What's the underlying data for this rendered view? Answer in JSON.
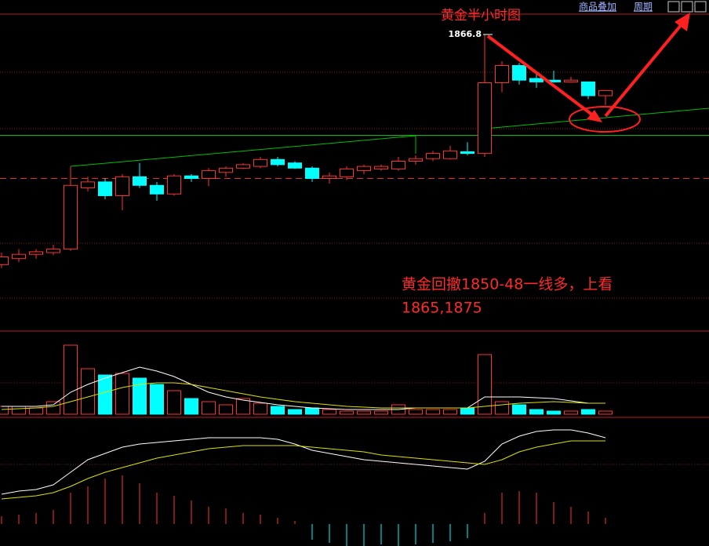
{
  "chart_data": {
    "type": "candlestick",
    "title": "黄金半小时图",
    "annotation": [
      "黄金回撤1850-48一线多，上看",
      "1865,1875"
    ],
    "toolbar": [
      "商品叠加",
      "周期"
    ],
    "open": [
      1840.1,
      1840.8,
      1841.3,
      1841.5,
      1841.9,
      1849.0,
      1849.7,
      1848.1,
      1850.3,
      1849.3,
      1848.3,
      1850.4,
      1850.1,
      1850.8,
      1851.3,
      1851.5,
      1852.3,
      1851.9,
      1851.3,
      1850.1,
      1850.3,
      1851.0,
      1851.2,
      1851.2,
      1852.1,
      1852.4,
      1852.4,
      1853.2,
      1853.0,
      1861.2,
      1863.2,
      1861.7,
      1861.5,
      1861.3,
      1861.3,
      1859.7
    ],
    "high": [
      1841.5,
      1841.9,
      1841.9,
      1842.4,
      1851.5,
      1850.3,
      1850.1,
      1850.6,
      1851.9,
      1849.7,
      1850.6,
      1850.6,
      1851.3,
      1851.5,
      1851.9,
      1852.6,
      1852.6,
      1852.1,
      1851.5,
      1850.8,
      1851.5,
      1851.7,
      1851.7,
      1852.6,
      1852.8,
      1853.3,
      1853.9,
      1854.3,
      1866.8,
      1863.7,
      1863.5,
      1862.3,
      1862.6,
      1861.9,
      1861.3,
      1860.3
    ],
    "low": [
      1839.7,
      1840.4,
      1840.8,
      1841.2,
      1841.7,
      1848.6,
      1847.7,
      1846.4,
      1849.0,
      1847.5,
      1848.1,
      1849.7,
      1849.2,
      1850.3,
      1851.2,
      1851.3,
      1851.5,
      1851.2,
      1849.7,
      1849.5,
      1849.9,
      1850.6,
      1851.0,
      1851.0,
      1851.7,
      1852.1,
      1852.3,
      1852.8,
      1852.6,
      1860.1,
      1861.0,
      1860.6,
      1861.2,
      1861.2,
      1859.3,
      1858.6
    ],
    "close": [
      1841.0,
      1841.3,
      1841.6,
      1841.9,
      1849.3,
      1849.7,
      1848.1,
      1850.3,
      1849.3,
      1848.3,
      1850.4,
      1850.1,
      1851.0,
      1851.3,
      1851.7,
      1852.3,
      1851.7,
      1851.3,
      1850.1,
      1850.4,
      1851.2,
      1851.5,
      1851.5,
      1852.1,
      1852.4,
      1853.0,
      1853.3,
      1853.0,
      1861.2,
      1863.2,
      1861.5,
      1861.3,
      1861.3,
      1861.5,
      1859.7,
      1860.3
    ],
    "up_color": "#ff3232",
    "down_color": "#00ffff",
    "ylim": [
      1832.4,
      1870.8
    ],
    "grid": true,
    "levels": [
      {
        "value": 1855.1,
        "color": "#00c000",
        "dash": false
      },
      {
        "value": 1850.1,
        "color": "#e03030",
        "dash": true
      }
    ],
    "volume": {
      "ylim": [
        0,
        91
      ],
      "values": [
        10,
        10,
        8,
        16,
        88,
        58,
        50,
        52,
        46,
        38,
        30,
        20,
        16,
        12,
        20,
        14,
        10,
        6,
        8,
        6,
        4,
        4,
        4,
        12,
        6,
        6,
        6,
        8,
        76,
        16,
        12,
        6,
        4,
        4,
        6,
        4
      ],
      "lines": [
        {
          "color": "#ffffff",
          "values": [
            10,
            10,
            10,
            12,
            28,
            38,
            46,
            53,
            60,
            55,
            48,
            38,
            28,
            22,
            18,
            15,
            12,
            10,
            8,
            7,
            6,
            6,
            6,
            6,
            8,
            8,
            8,
            8,
            22,
            22,
            22,
            21,
            20,
            17,
            14,
            14
          ]
        },
        {
          "color": "#e0e000",
          "values": [
            6,
            7,
            8,
            10,
            16,
            22,
            28,
            34,
            38,
            40,
            40,
            38,
            34,
            30,
            26,
            22,
            19,
            16,
            14,
            12,
            10,
            9,
            8,
            8,
            8,
            8,
            8,
            8,
            10,
            12,
            14,
            15,
            16,
            15,
            14,
            14
          ]
        }
      ]
    },
    "macd": {
      "ylim": [
        -28,
        136
      ],
      "hist": [
        10,
        12,
        14,
        18,
        40,
        48,
        58,
        62,
        52,
        40,
        36,
        30,
        22,
        20,
        14,
        12,
        8,
        4,
        -20,
        -24,
        -28,
        -28,
        -26,
        -28,
        -26,
        -24,
        -22,
        -18,
        14,
        40,
        42,
        40,
        28,
        22,
        16,
        8
      ],
      "lines": [
        {
          "color": "#ffffff",
          "values": [
            38,
            42,
            44,
            50,
            66,
            82,
            90,
            98,
            102,
            104,
            106,
            108,
            110,
            110,
            110,
            110,
            108,
            102,
            94,
            90,
            86,
            82,
            80,
            78,
            76,
            74,
            72,
            70,
            80,
            102,
            112,
            118,
            120,
            120,
            116,
            110
          ]
        },
        {
          "color": "#e0e000",
          "values": [
            32,
            34,
            36,
            40,
            48,
            58,
            66,
            72,
            78,
            84,
            88,
            92,
            96,
            98,
            100,
            100,
            100,
            100,
            98,
            96,
            94,
            92,
            88,
            86,
            84,
            82,
            80,
            78,
            76,
            82,
            92,
            98,
            102,
            106,
            106,
            106
          ]
        }
      ]
    }
  }
}
